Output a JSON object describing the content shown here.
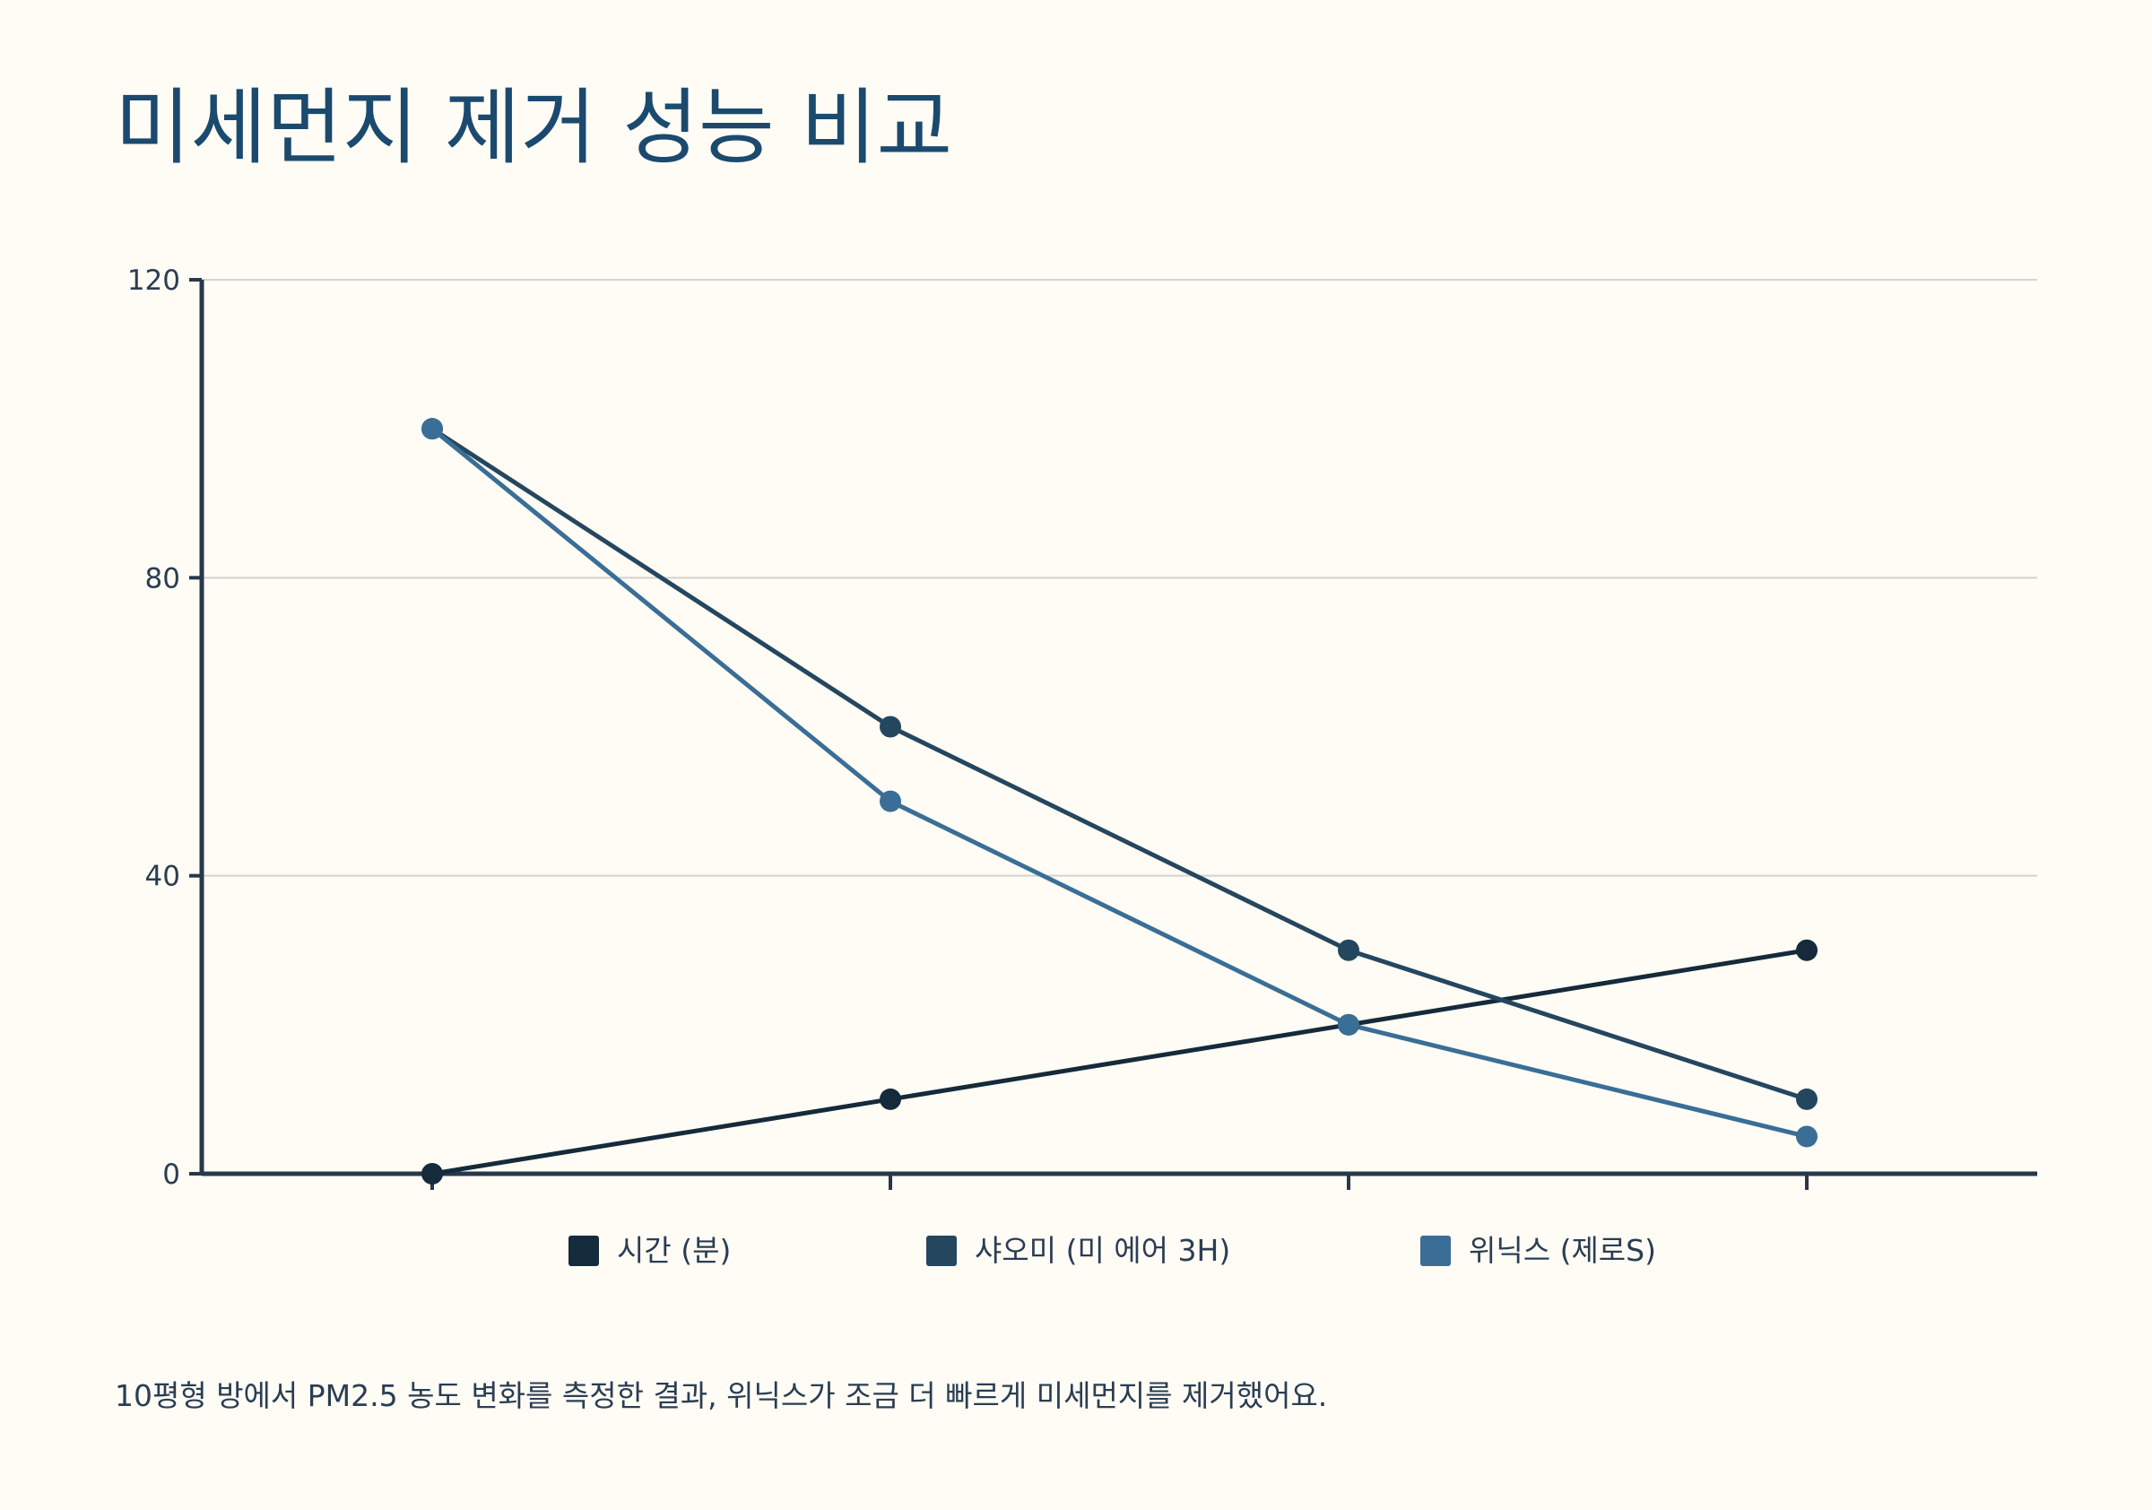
{
  "title": "미세먼지 제거 성능 비교",
  "footnote": "10평형 방에서 PM2.5 농도 변화를 측정한 결과, 위닉스가 조금 더 빠르게 미세먼지를 제거했어요.",
  "chart_data": {
    "type": "line",
    "title": "미세먼지 제거 성능 비교",
    "xlabel": "",
    "ylabel": "",
    "x": [
      0,
      1,
      2,
      3
    ],
    "x_tick_labels": [],
    "ylim": [
      0,
      120
    ],
    "y_ticks": [
      0,
      40,
      80,
      120
    ],
    "grid": true,
    "legend_position": "bottom",
    "series": [
      {
        "name": "시간 (분)",
        "color": "#152A3A",
        "values": [
          0,
          10,
          20,
          30
        ]
      },
      {
        "name": "샤오미 (미 에어 3H)",
        "color": "#25465F",
        "values": [
          100,
          60,
          30,
          10
        ]
      },
      {
        "name": "위닉스 (제로S)",
        "color": "#3A6E96",
        "values": [
          100,
          50,
          20,
          5
        ]
      }
    ]
  }
}
